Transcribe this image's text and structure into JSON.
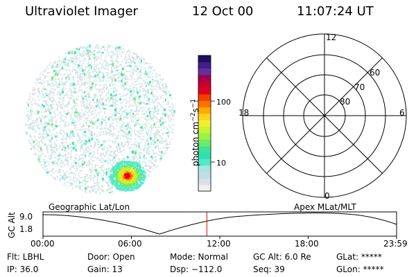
{
  "header": {
    "instrument": "Ultraviolet Imager",
    "date": "12 Oct 00",
    "time": "11:07:24 UT"
  },
  "colorbar": {
    "label": "photon cm",
    "label_sup1": "−2",
    "label_mid": "s",
    "label_sup2": "−1",
    "ticks": [
      "100",
      "10"
    ],
    "colors": [
      "#eeeeee",
      "#d8dfe6",
      "#c0dde4",
      "#a3e6e6",
      "#55e8c8",
      "#2fe1b2",
      "#3de39a",
      "#6eea6a",
      "#9af246",
      "#c6f530",
      "#eef02e",
      "#ffd21e",
      "#ffaa00",
      "#ff7000",
      "#f04000",
      "#e00020",
      "#c8002a",
      "#a00050",
      "#6a2ea0",
      "#40208a",
      "#1e1060"
    ]
  },
  "polar_grid": {
    "mlt_labels": {
      "top": "12",
      "left": "18",
      "right": "6",
      "bottom": "0"
    },
    "lat_labels": [
      "60",
      "70",
      "80"
    ]
  },
  "timeline": {
    "left_label": "Geographic Lat/Lon",
    "right_label": "Apex MLat/MLT",
    "axis_title": "GC Alt",
    "y_ticks": [
      "9.0",
      "1.8"
    ],
    "x_ticks": [
      "00:00",
      "06:00",
      "12:00",
      "18:00",
      "23:59"
    ],
    "current_time_fraction": 0.4634,
    "marker_color": "#e00000"
  },
  "status": {
    "row1": [
      "Flt: LBHL",
      "Door: Open",
      "Mode: Normal",
      "GC Alt: 6.0 Re",
      "GLat: *****"
    ],
    "row2": [
      "IP: 36.0",
      "Gain: 13",
      "Dsp: −112.0",
      "Seq: 39",
      "GLon: *****"
    ]
  }
}
